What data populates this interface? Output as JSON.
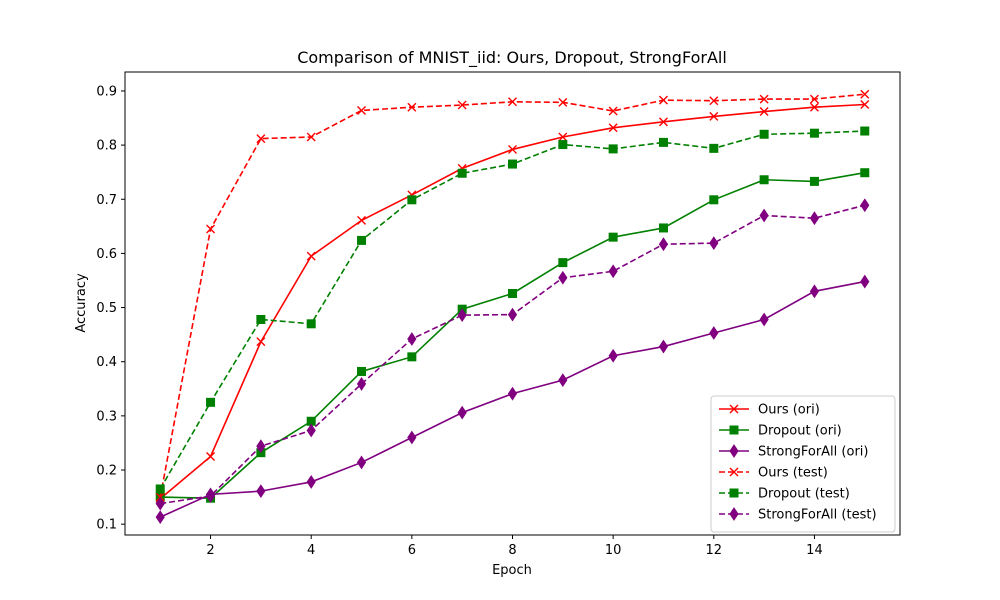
{
  "chart_data": {
    "type": "line",
    "title": "Comparison of MNIST_iid: Ours, Dropout, StrongForAll",
    "xlabel": "Epoch",
    "ylabel": "Accuracy",
    "xlim": [
      0.3,
      15.7
    ],
    "ylim": [
      0.08,
      0.935
    ],
    "xticks": [
      2,
      4,
      6,
      8,
      10,
      12,
      14
    ],
    "yticks": [
      0.1,
      0.2,
      0.3,
      0.4,
      0.5,
      0.6,
      0.7,
      0.8,
      0.9
    ],
    "grid": false,
    "legend_position": "bottom-right",
    "x": [
      1,
      2,
      3,
      4,
      5,
      6,
      7,
      8,
      9,
      10,
      11,
      12,
      13,
      14,
      15
    ],
    "series": [
      {
        "name": "Ours (ori)",
        "color": "#ff0000",
        "marker": "x",
        "linestyle": "solid",
        "values": [
          0.147,
          0.225,
          0.437,
          0.595,
          0.661,
          0.708,
          0.757,
          0.792,
          0.815,
          0.832,
          0.843,
          0.853,
          0.862,
          0.87,
          0.875
        ]
      },
      {
        "name": "Dropout (ori)",
        "color": "#008000",
        "marker": "square",
        "linestyle": "solid",
        "values": [
          0.15,
          0.148,
          0.232,
          0.29,
          0.382,
          0.409,
          0.497,
          0.526,
          0.583,
          0.63,
          0.647,
          0.699,
          0.736,
          0.733,
          0.749
        ]
      },
      {
        "name": "StrongForAll (ori)",
        "color": "#800080",
        "marker": "diamond",
        "linestyle": "solid",
        "values": [
          0.113,
          0.155,
          0.161,
          0.178,
          0.214,
          0.26,
          0.306,
          0.341,
          0.366,
          0.411,
          0.428,
          0.453,
          0.478,
          0.53,
          0.548
        ]
      },
      {
        "name": "Ours (test)",
        "color": "#ff0000",
        "marker": "x",
        "linestyle": "dashed",
        "values": [
          0.15,
          0.645,
          0.812,
          0.815,
          0.864,
          0.87,
          0.874,
          0.88,
          0.879,
          0.863,
          0.883,
          0.882,
          0.885,
          0.885,
          0.894
        ]
      },
      {
        "name": "Dropout (test)",
        "color": "#008000",
        "marker": "square",
        "linestyle": "dashed",
        "values": [
          0.165,
          0.325,
          0.478,
          0.47,
          0.624,
          0.699,
          0.748,
          0.765,
          0.801,
          0.793,
          0.805,
          0.794,
          0.82,
          0.822,
          0.826
        ]
      },
      {
        "name": "StrongForAll (test)",
        "color": "#800080",
        "marker": "diamond",
        "linestyle": "dashed",
        "values": [
          0.138,
          0.152,
          0.244,
          0.273,
          0.359,
          0.442,
          0.486,
          0.487,
          0.555,
          0.567,
          0.617,
          0.619,
          0.67,
          0.665,
          0.689
        ]
      }
    ]
  }
}
